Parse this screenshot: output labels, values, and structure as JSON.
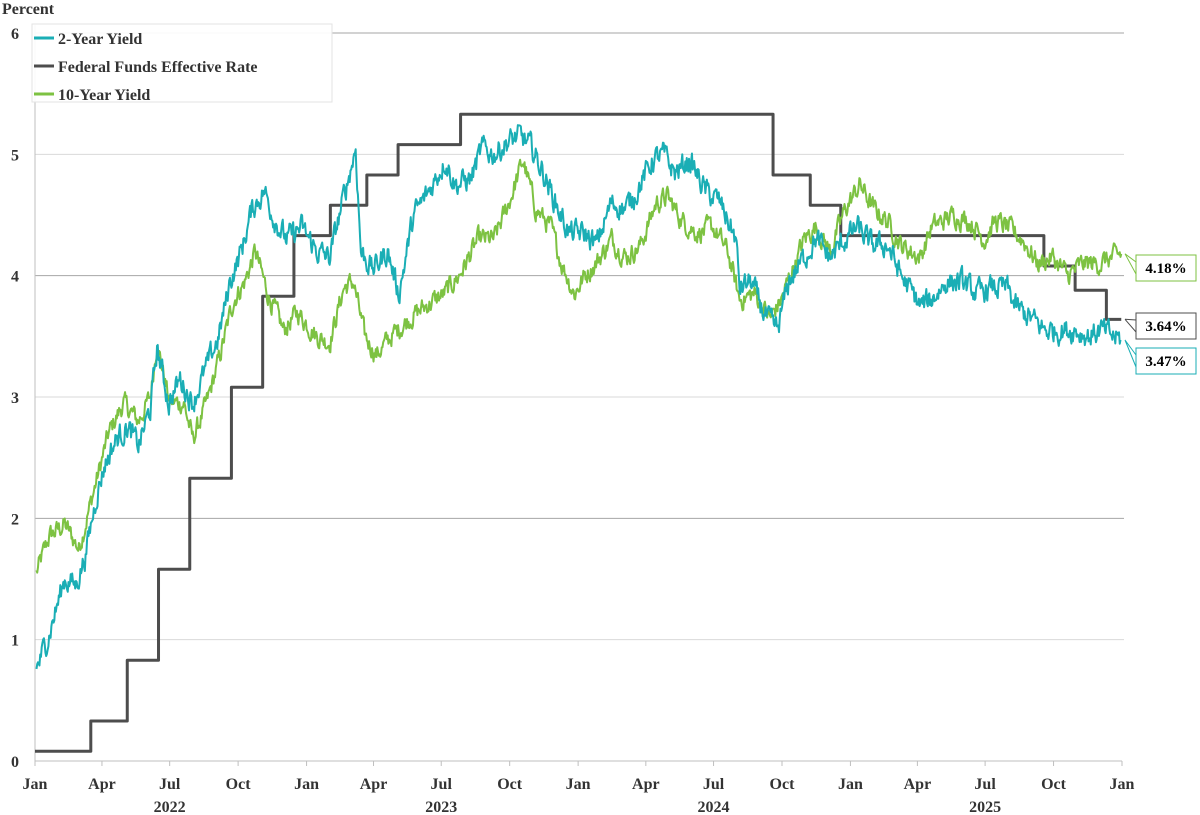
{
  "chart_data": {
    "type": "line",
    "title": "",
    "ylabel": "Percent",
    "xlabel": "",
    "ylim": [
      0,
      6
    ],
    "yticks": [
      "0",
      "1",
      "2",
      "3",
      "4",
      "5",
      "6"
    ],
    "xlim": [
      "2022-01-01",
      "2026-01-01"
    ],
    "xticks": [
      {
        "date": "2022-01-01",
        "label": "Jan"
      },
      {
        "date": "2022-04-01",
        "label": "Apr"
      },
      {
        "date": "2022-07-01",
        "label": "Jul"
      },
      {
        "date": "2022-10-01",
        "label": "Oct"
      },
      {
        "date": "2023-01-01",
        "label": "Jan"
      },
      {
        "date": "2023-04-01",
        "label": "Apr"
      },
      {
        "date": "2023-07-01",
        "label": "Jul"
      },
      {
        "date": "2023-10-01",
        "label": "Oct"
      },
      {
        "date": "2024-01-01",
        "label": "Jan"
      },
      {
        "date": "2024-04-01",
        "label": "Apr"
      },
      {
        "date": "2024-07-01",
        "label": "Jul"
      },
      {
        "date": "2024-10-01",
        "label": "Oct"
      },
      {
        "date": "2025-01-01",
        "label": "Jan"
      },
      {
        "date": "2025-04-01",
        "label": "Apr"
      },
      {
        "date": "2025-07-01",
        "label": "Jul"
      },
      {
        "date": "2025-10-01",
        "label": "Oct"
      },
      {
        "date": "2026-01-01",
        "label": "Jan"
      }
    ],
    "year_labels": [
      {
        "date": "2022-07-01",
        "label": "2022"
      },
      {
        "date": "2023-07-01",
        "label": "2023"
      },
      {
        "date": "2024-07-01",
        "label": "2024"
      },
      {
        "date": "2025-07-01",
        "label": "2025"
      }
    ],
    "grid": true,
    "legend_position": "top-left",
    "series": [
      {
        "name": "2-Year Yield",
        "color": "#1aaeb5",
        "end_label": "3.47%",
        "points": [
          [
            "2022-01-03",
            0.75
          ],
          [
            "2022-01-20",
            1.05
          ],
          [
            "2022-02-10",
            1.5
          ],
          [
            "2022-02-25",
            1.45
          ],
          [
            "2022-03-10",
            1.7
          ],
          [
            "2022-03-25",
            2.2
          ],
          [
            "2022-04-05",
            2.45
          ],
          [
            "2022-04-20",
            2.65
          ],
          [
            "2022-05-05",
            2.75
          ],
          [
            "2022-05-20",
            2.6
          ],
          [
            "2022-06-05",
            2.9
          ],
          [
            "2022-06-14",
            3.4
          ],
          [
            "2022-06-30",
            2.95
          ],
          [
            "2022-07-15",
            3.15
          ],
          [
            "2022-08-01",
            2.95
          ],
          [
            "2022-08-20",
            3.25
          ],
          [
            "2022-09-05",
            3.5
          ],
          [
            "2022-09-20",
            3.95
          ],
          [
            "2022-10-05",
            4.2
          ],
          [
            "2022-10-20",
            4.55
          ],
          [
            "2022-11-05",
            4.7
          ],
          [
            "2022-11-20",
            4.45
          ],
          [
            "2022-12-05",
            4.3
          ],
          [
            "2022-12-25",
            4.4
          ],
          [
            "2023-01-15",
            4.2
          ],
          [
            "2023-02-01",
            4.15
          ],
          [
            "2023-02-20",
            4.65
          ],
          [
            "2023-03-08",
            5.05
          ],
          [
            "2023-03-15",
            4.2
          ],
          [
            "2023-03-31",
            4.05
          ],
          [
            "2023-04-20",
            4.2
          ],
          [
            "2023-05-05",
            3.85
          ],
          [
            "2023-05-25",
            4.5
          ],
          [
            "2023-06-15",
            4.7
          ],
          [
            "2023-07-06",
            4.95
          ],
          [
            "2023-07-20",
            4.75
          ],
          [
            "2023-08-10",
            4.8
          ],
          [
            "2023-08-25",
            5.05
          ],
          [
            "2023-09-10",
            5.0
          ],
          [
            "2023-09-28",
            5.1
          ],
          [
            "2023-10-15",
            5.15
          ],
          [
            "2023-10-31",
            5.05
          ],
          [
            "2023-11-15",
            4.85
          ],
          [
            "2023-12-05",
            4.55
          ],
          [
            "2023-12-20",
            4.35
          ],
          [
            "2024-01-10",
            4.35
          ],
          [
            "2024-01-25",
            4.25
          ],
          [
            "2024-02-15",
            4.6
          ],
          [
            "2024-03-05",
            4.55
          ],
          [
            "2024-03-20",
            4.7
          ],
          [
            "2024-04-10",
            4.95
          ],
          [
            "2024-04-25",
            5.0
          ],
          [
            "2024-05-10",
            4.85
          ],
          [
            "2024-05-30",
            4.95
          ],
          [
            "2024-06-20",
            4.7
          ],
          [
            "2024-07-10",
            4.6
          ],
          [
            "2024-07-31",
            4.3
          ],
          [
            "2024-08-05",
            3.9
          ],
          [
            "2024-08-20",
            3.95
          ],
          [
            "2024-09-10",
            3.65
          ],
          [
            "2024-09-25",
            3.55
          ],
          [
            "2024-10-10",
            3.95
          ],
          [
            "2024-10-31",
            4.15
          ],
          [
            "2024-11-15",
            4.3
          ],
          [
            "2024-12-05",
            4.15
          ],
          [
            "2024-12-25",
            4.3
          ],
          [
            "2025-01-10",
            4.4
          ],
          [
            "2025-01-30",
            4.25
          ],
          [
            "2025-02-20",
            4.25
          ],
          [
            "2025-03-10",
            4.0
          ],
          [
            "2025-04-05",
            3.75
          ],
          [
            "2025-04-20",
            3.8
          ],
          [
            "2025-05-10",
            3.95
          ],
          [
            "2025-05-30",
            3.95
          ],
          [
            "2025-06-20",
            3.85
          ],
          [
            "2025-07-10",
            3.9
          ],
          [
            "2025-07-31",
            3.9
          ],
          [
            "2025-08-10",
            3.75
          ],
          [
            "2025-08-31",
            3.65
          ],
          [
            "2025-09-20",
            3.55
          ],
          [
            "2025-10-10",
            3.55
          ],
          [
            "2025-10-31",
            3.55
          ],
          [
            "2025-11-15",
            3.5
          ],
          [
            "2025-12-05",
            3.55
          ],
          [
            "2025-12-30",
            3.47
          ]
        ]
      },
      {
        "name": "Federal Funds Effective Rate",
        "color": "#4d4d4d",
        "end_label": "3.64%",
        "steps": [
          [
            "2022-01-01",
            0.08
          ],
          [
            "2022-03-17",
            0.33
          ],
          [
            "2022-05-05",
            0.83
          ],
          [
            "2022-06-16",
            1.58
          ],
          [
            "2022-07-28",
            2.33
          ],
          [
            "2022-09-22",
            3.08
          ],
          [
            "2022-11-03",
            3.83
          ],
          [
            "2022-12-15",
            4.33
          ],
          [
            "2023-02-02",
            4.58
          ],
          [
            "2023-03-23",
            4.83
          ],
          [
            "2023-05-04",
            5.08
          ],
          [
            "2023-07-27",
            5.33
          ],
          [
            "2024-09-19",
            4.83
          ],
          [
            "2024-11-08",
            4.58
          ],
          [
            "2024-12-19",
            4.33
          ],
          [
            "2025-09-18",
            4.08
          ],
          [
            "2025-10-30",
            3.88
          ],
          [
            "2025-12-11",
            3.64
          ],
          [
            "2025-12-31",
            3.64
          ]
        ]
      },
      {
        "name": "10-Year Yield",
        "color": "#7dc242",
        "end_label": "4.18%",
        "points": [
          [
            "2022-01-03",
            1.55
          ],
          [
            "2022-01-20",
            1.85
          ],
          [
            "2022-02-10",
            1.95
          ],
          [
            "2022-03-01",
            1.75
          ],
          [
            "2022-03-20",
            2.2
          ],
          [
            "2022-04-10",
            2.7
          ],
          [
            "2022-04-30",
            2.95
          ],
          [
            "2022-05-20",
            2.8
          ],
          [
            "2022-06-05",
            3.0
          ],
          [
            "2022-06-14",
            3.45
          ],
          [
            "2022-07-01",
            2.95
          ],
          [
            "2022-07-20",
            2.95
          ],
          [
            "2022-08-01",
            2.65
          ],
          [
            "2022-08-20",
            2.95
          ],
          [
            "2022-09-05",
            3.3
          ],
          [
            "2022-09-25",
            3.8
          ],
          [
            "2022-10-10",
            3.95
          ],
          [
            "2022-10-24",
            4.2
          ],
          [
            "2022-11-10",
            3.85
          ],
          [
            "2022-12-01",
            3.55
          ],
          [
            "2022-12-20",
            3.7
          ],
          [
            "2023-01-15",
            3.5
          ],
          [
            "2023-02-01",
            3.45
          ],
          [
            "2023-02-20",
            3.9
          ],
          [
            "2023-03-05",
            3.95
          ],
          [
            "2023-03-20",
            3.5
          ],
          [
            "2023-04-05",
            3.35
          ],
          [
            "2023-04-25",
            3.5
          ],
          [
            "2023-05-20",
            3.65
          ],
          [
            "2023-06-10",
            3.75
          ],
          [
            "2023-07-05",
            3.85
          ],
          [
            "2023-07-25",
            4.0
          ],
          [
            "2023-08-20",
            4.3
          ],
          [
            "2023-09-10",
            4.3
          ],
          [
            "2023-09-30",
            4.6
          ],
          [
            "2023-10-19",
            4.95
          ],
          [
            "2023-11-05",
            4.55
          ],
          [
            "2023-11-25",
            4.4
          ],
          [
            "2023-12-10",
            4.1
          ],
          [
            "2023-12-27",
            3.85
          ],
          [
            "2024-01-10",
            4.0
          ],
          [
            "2024-01-25",
            4.1
          ],
          [
            "2024-02-15",
            4.3
          ],
          [
            "2024-03-05",
            4.15
          ],
          [
            "2024-03-25",
            4.25
          ],
          [
            "2024-04-15",
            4.6
          ],
          [
            "2024-04-30",
            4.65
          ],
          [
            "2024-05-20",
            4.45
          ],
          [
            "2024-06-10",
            4.35
          ],
          [
            "2024-06-30",
            4.4
          ],
          [
            "2024-07-20",
            4.2
          ],
          [
            "2024-08-05",
            3.8
          ],
          [
            "2024-08-25",
            3.85
          ],
          [
            "2024-09-15",
            3.65
          ],
          [
            "2024-09-30",
            3.8
          ],
          [
            "2024-10-15",
            4.05
          ],
          [
            "2024-10-31",
            4.3
          ],
          [
            "2024-11-15",
            4.4
          ],
          [
            "2024-12-05",
            4.2
          ],
          [
            "2024-12-25",
            4.55
          ],
          [
            "2025-01-14",
            4.75
          ],
          [
            "2025-02-01",
            4.55
          ],
          [
            "2025-02-20",
            4.45
          ],
          [
            "2025-03-10",
            4.25
          ],
          [
            "2025-04-05",
            4.15
          ],
          [
            "2025-04-20",
            4.4
          ],
          [
            "2025-05-20",
            4.5
          ],
          [
            "2025-06-10",
            4.45
          ],
          [
            "2025-06-30",
            4.3
          ],
          [
            "2025-07-15",
            4.45
          ],
          [
            "2025-07-31",
            4.4
          ],
          [
            "2025-08-20",
            4.3
          ],
          [
            "2025-09-10",
            4.1
          ],
          [
            "2025-09-30",
            4.15
          ],
          [
            "2025-10-20",
            4.0
          ],
          [
            "2025-11-10",
            4.1
          ],
          [
            "2025-12-01",
            4.1
          ],
          [
            "2025-12-31",
            4.18
          ]
        ]
      }
    ]
  }
}
